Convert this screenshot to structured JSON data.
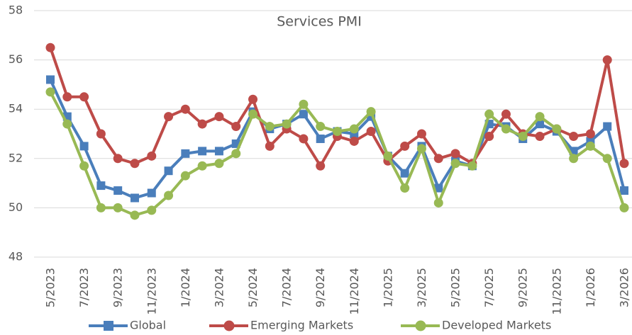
{
  "chart_data": {
    "type": "line",
    "title": "Services PMI",
    "categories": [
      "5/2023",
      null,
      "7/2023",
      null,
      "9/2023",
      null,
      "11/2023",
      null,
      "1/2024",
      null,
      "3/2024",
      null,
      "5/2024",
      null,
      "7/2024",
      null,
      "9/2024",
      null,
      "11/2024",
      null,
      "1/2025",
      null,
      "3/2025",
      null,
      "5/2025",
      null,
      "7/2025",
      null,
      "9/2025",
      null,
      "11/2025",
      null,
      "1/2026",
      null,
      "3/2026"
    ],
    "series": [
      {
        "name": "Global",
        "color": "#4a7ebb",
        "marker": "square",
        "values": [
          55.2,
          53.7,
          52.5,
          50.9,
          50.7,
          50.4,
          50.6,
          51.5,
          52.2,
          52.3,
          52.3,
          52.6,
          53.9,
          53.2,
          53.4,
          53.8,
          52.8,
          53.1,
          53.0,
          53.7,
          52.1,
          51.4,
          52.5,
          50.8,
          51.9,
          51.7,
          53.4,
          53.3,
          52.8,
          53.4,
          53.1,
          52.3,
          52.7,
          53.3,
          50.7
        ]
      },
      {
        "name": "Emerging Markets",
        "color": "#be4b48",
        "marker": "circle",
        "values": [
          56.5,
          54.5,
          54.5,
          53.0,
          52.0,
          51.8,
          52.1,
          53.7,
          54.0,
          53.4,
          53.7,
          53.3,
          54.4,
          52.5,
          53.2,
          52.8,
          51.7,
          52.9,
          52.7,
          53.1,
          51.9,
          52.5,
          53.0,
          52.0,
          52.2,
          51.8,
          52.9,
          53.8,
          53.0,
          52.9,
          53.2,
          52.9,
          53.0,
          56.0,
          51.8
        ]
      },
      {
        "name": "Developed Markets",
        "color": "#98b954",
        "marker": "circle",
        "values": [
          54.7,
          53.4,
          51.7,
          50.0,
          50.0,
          49.7,
          49.9,
          50.5,
          51.3,
          51.7,
          51.8,
          52.2,
          53.8,
          53.3,
          53.4,
          54.2,
          53.3,
          53.1,
          53.2,
          53.9,
          52.1,
          50.8,
          52.4,
          50.2,
          51.8,
          51.7,
          53.8,
          53.2,
          52.9,
          53.7,
          53.2,
          52.0,
          52.5,
          52.0,
          50.0
        ]
      }
    ],
    "ylim": [
      48,
      58
    ],
    "yticks": [
      48,
      50,
      52,
      54,
      56,
      58
    ],
    "grid": true,
    "legend": "bottom"
  }
}
